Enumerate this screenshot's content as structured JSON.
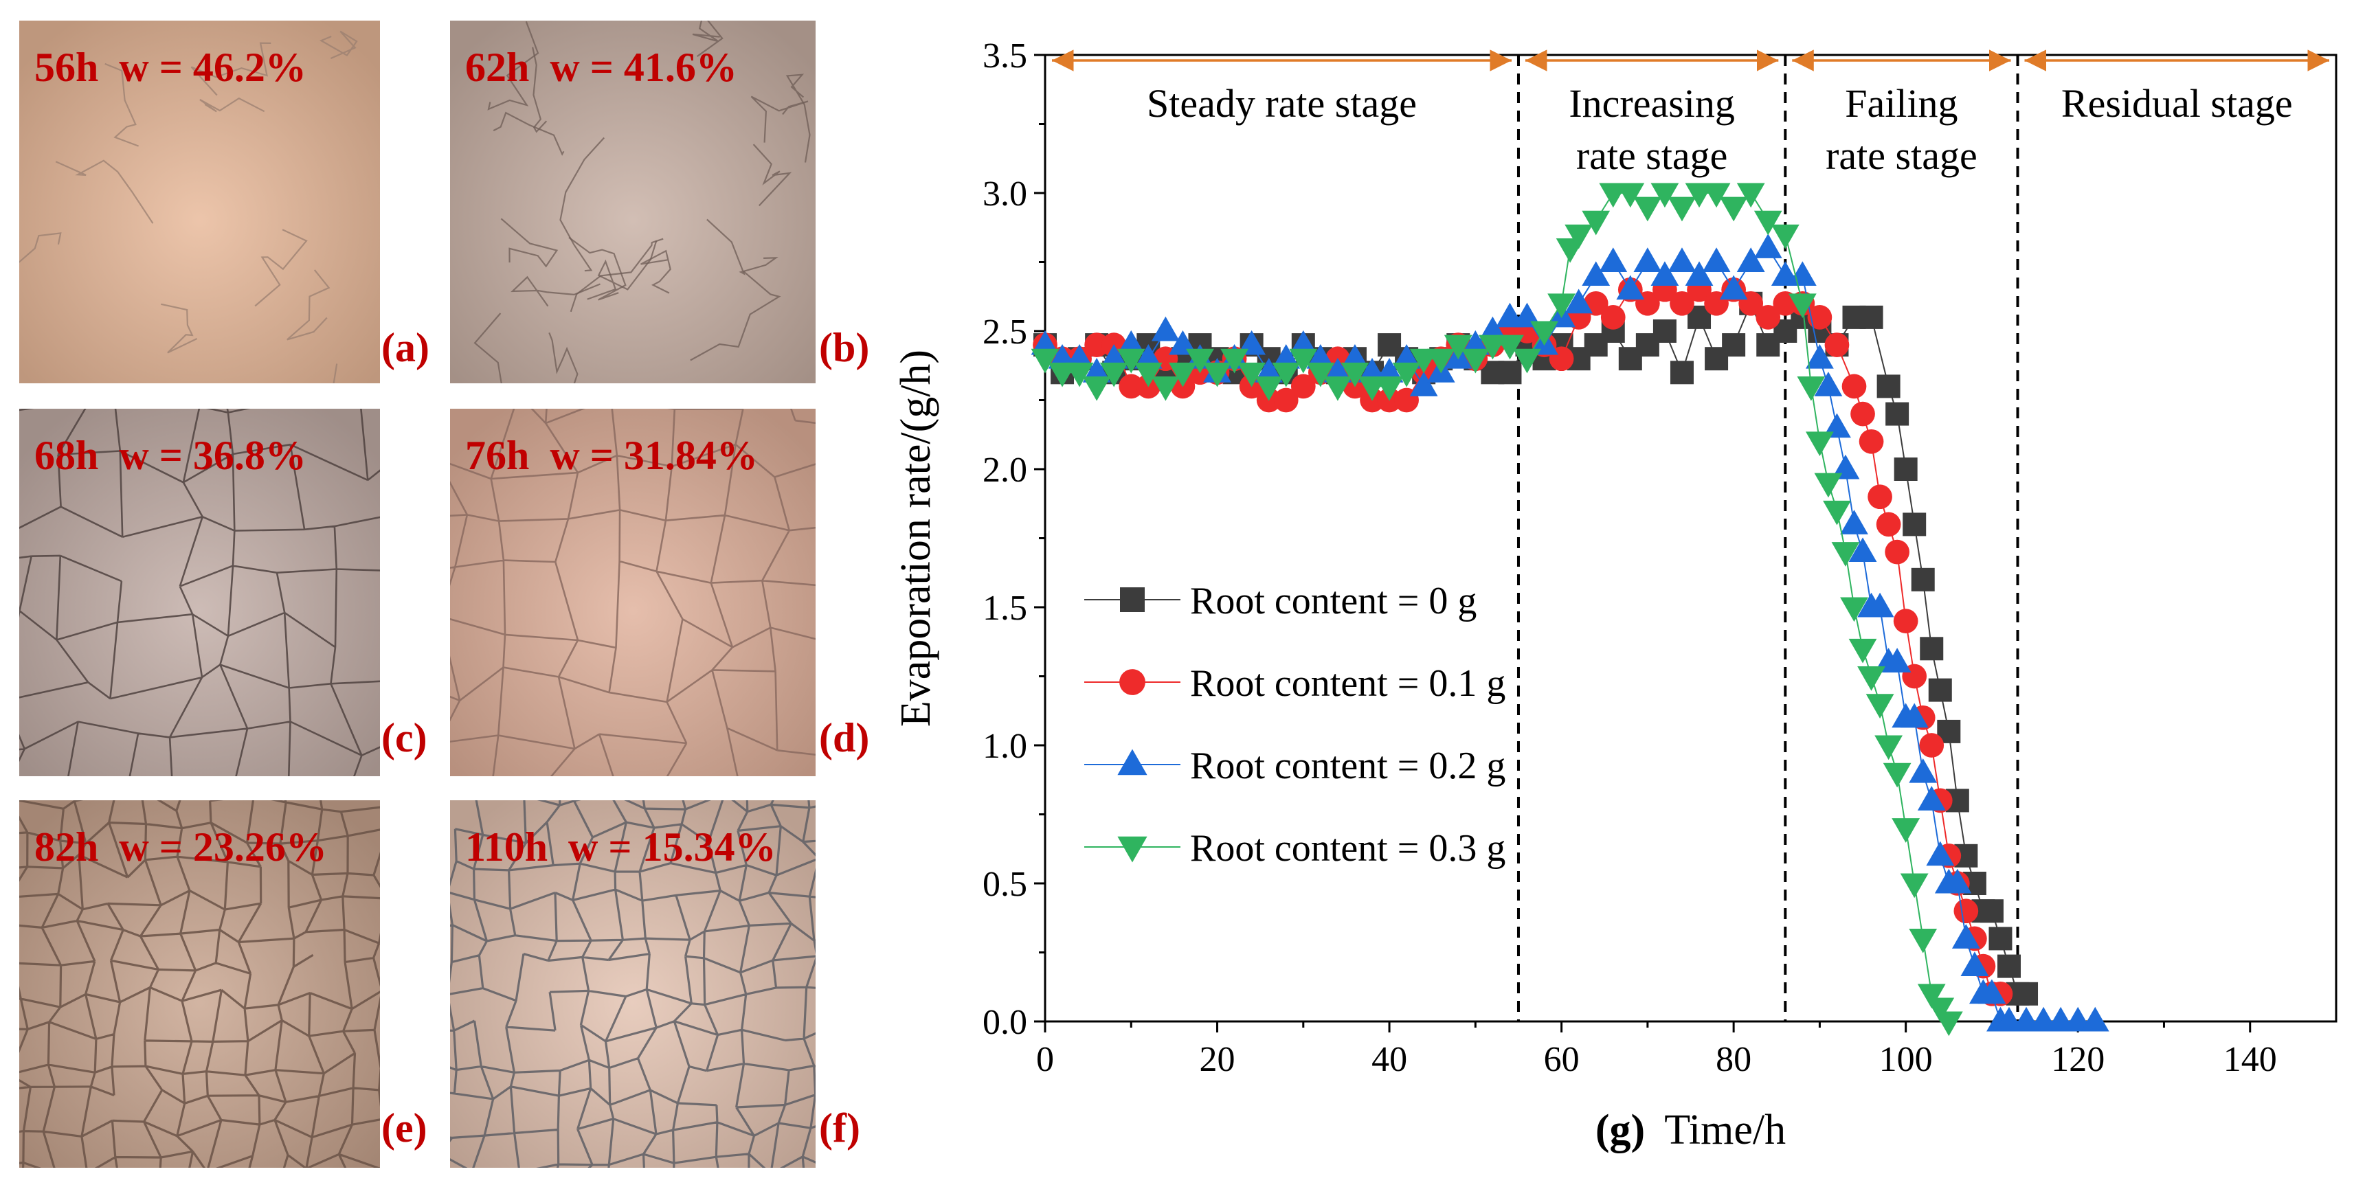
{
  "photos": [
    {
      "id": "a",
      "caption": "56h  w = 46.2%",
      "tag": "(a)",
      "base": "#e8b898",
      "crack": "#9a7f70",
      "crack_density": "sparse"
    },
    {
      "id": "b",
      "caption": "62h  w = 41.6%",
      "tag": "(b)",
      "base": "#c8b0a4",
      "crack": "#6d5c55",
      "crack_density": "light"
    },
    {
      "id": "c",
      "caption": "68h  w = 36.8%",
      "tag": "(c)",
      "base": "#c2ada6",
      "crack": "#4f4240",
      "crack_density": "medium"
    },
    {
      "id": "d",
      "caption": "76h  w = 31.84%",
      "tag": "(d)",
      "base": "#e0b09a",
      "crack": "#8b6b60",
      "crack_density": "medium"
    },
    {
      "id": "e",
      "caption": "82h  w = 23.26%",
      "tag": "(e)",
      "base": "#c8a48e",
      "crack": "#6a5246",
      "crack_density": "dense"
    },
    {
      "id": "f",
      "caption": "110h  w = 15.34%",
      "tag": "(f)",
      "base": "#e3c2b0",
      "crack": "#5e5e64",
      "crack_density": "dense"
    }
  ],
  "chart_data": {
    "type": "scatter",
    "title": "",
    "panel_label": "(g)",
    "xlabel": "Time/h",
    "ylabel": "Evaporation rate/(g/h)",
    "xlim": [
      0,
      150
    ],
    "ylim": [
      0,
      3.5
    ],
    "xticks": [
      0,
      20,
      40,
      60,
      80,
      100,
      120,
      140
    ],
    "yticks": [
      0.0,
      0.5,
      1.0,
      1.5,
      2.0,
      2.5,
      3.0,
      3.5
    ],
    "ytick_labels": [
      "0.0",
      "0.5",
      "1.0",
      "1.5",
      "2.0",
      "2.5",
      "3.0",
      "3.5"
    ],
    "stage_boundaries": [
      55,
      86,
      113
    ],
    "stages": [
      {
        "label_lines": [
          "Steady rate stage"
        ],
        "from": 0,
        "to": 55
      },
      {
        "label_lines": [
          "Increasing",
          "rate stage"
        ],
        "from": 55,
        "to": 86
      },
      {
        "label_lines": [
          "Failing",
          "rate stage"
        ],
        "from": 86,
        "to": 113
      },
      {
        "label_lines": [
          "Residual stage"
        ],
        "from": 113,
        "to": 150
      }
    ],
    "stage_arrow_color": "#e07b28",
    "legend_position": "center-left",
    "series": [
      {
        "name": "Root content = 0 g",
        "marker": "square",
        "color": "#3c3c3c",
        "points": [
          [
            0,
            2.45
          ],
          [
            2,
            2.35
          ],
          [
            4,
            2.4
          ],
          [
            6,
            2.45
          ],
          [
            8,
            2.35
          ],
          [
            10,
            2.4
          ],
          [
            12,
            2.45
          ],
          [
            14,
            2.35
          ],
          [
            16,
            2.4
          ],
          [
            18,
            2.45
          ],
          [
            20,
            2.4
          ],
          [
            22,
            2.35
          ],
          [
            24,
            2.45
          ],
          [
            26,
            2.4
          ],
          [
            28,
            2.35
          ],
          [
            30,
            2.45
          ],
          [
            32,
            2.4
          ],
          [
            34,
            2.35
          ],
          [
            36,
            2.4
          ],
          [
            38,
            2.35
          ],
          [
            40,
            2.45
          ],
          [
            42,
            2.4
          ],
          [
            44,
            2.35
          ],
          [
            46,
            2.4
          ],
          [
            48,
            2.45
          ],
          [
            50,
            2.4
          ],
          [
            52,
            2.35
          ],
          [
            54,
            2.35
          ],
          [
            56,
            2.45
          ],
          [
            58,
            2.4
          ],
          [
            60,
            2.45
          ],
          [
            62,
            2.4
          ],
          [
            64,
            2.45
          ],
          [
            66,
            2.5
          ],
          [
            68,
            2.4
          ],
          [
            70,
            2.45
          ],
          [
            72,
            2.5
          ],
          [
            74,
            2.35
          ],
          [
            76,
            2.55
          ],
          [
            78,
            2.4
          ],
          [
            80,
            2.45
          ],
          [
            82,
            2.6
          ],
          [
            84,
            2.45
          ],
          [
            86,
            2.5
          ],
          [
            88,
            2.55
          ],
          [
            90,
            2.5
          ],
          [
            92,
            2.45
          ],
          [
            94,
            2.55
          ],
          [
            96,
            2.55
          ],
          [
            98,
            2.3
          ],
          [
            99,
            2.2
          ],
          [
            100,
            2.0
          ],
          [
            101,
            1.8
          ],
          [
            102,
            1.6
          ],
          [
            103,
            1.35
          ],
          [
            104,
            1.2
          ],
          [
            105,
            1.05
          ],
          [
            106,
            0.8
          ],
          [
            107,
            0.6
          ],
          [
            108,
            0.5
          ],
          [
            109,
            0.4
          ],
          [
            110,
            0.4
          ],
          [
            111,
            0.3
          ],
          [
            112,
            0.2
          ],
          [
            113,
            0.1
          ],
          [
            114,
            0.1
          ]
        ]
      },
      {
        "name": "Root content = 0.1 g",
        "marker": "circle",
        "color": "#ee2b2b",
        "points": [
          [
            0,
            2.45
          ],
          [
            2,
            2.4
          ],
          [
            4,
            2.4
          ],
          [
            6,
            2.45
          ],
          [
            8,
            2.45
          ],
          [
            10,
            2.3
          ],
          [
            12,
            2.3
          ],
          [
            14,
            2.4
          ],
          [
            16,
            2.3
          ],
          [
            18,
            2.35
          ],
          [
            20,
            2.35
          ],
          [
            22,
            2.4
          ],
          [
            24,
            2.3
          ],
          [
            26,
            2.25
          ],
          [
            28,
            2.25
          ],
          [
            30,
            2.3
          ],
          [
            32,
            2.35
          ],
          [
            34,
            2.4
          ],
          [
            36,
            2.3
          ],
          [
            38,
            2.25
          ],
          [
            40,
            2.25
          ],
          [
            42,
            2.25
          ],
          [
            44,
            2.35
          ],
          [
            46,
            2.4
          ],
          [
            48,
            2.45
          ],
          [
            50,
            2.4
          ],
          [
            52,
            2.45
          ],
          [
            54,
            2.5
          ],
          [
            56,
            2.5
          ],
          [
            58,
            2.45
          ],
          [
            60,
            2.4
          ],
          [
            62,
            2.55
          ],
          [
            64,
            2.6
          ],
          [
            66,
            2.55
          ],
          [
            68,
            2.65
          ],
          [
            70,
            2.6
          ],
          [
            72,
            2.65
          ],
          [
            74,
            2.6
          ],
          [
            76,
            2.65
          ],
          [
            78,
            2.6
          ],
          [
            80,
            2.65
          ],
          [
            82,
            2.6
          ],
          [
            84,
            2.55
          ],
          [
            86,
            2.6
          ],
          [
            88,
            2.6
          ],
          [
            90,
            2.55
          ],
          [
            92,
            2.45
          ],
          [
            94,
            2.3
          ],
          [
            95,
            2.2
          ],
          [
            96,
            2.1
          ],
          [
            97,
            1.9
          ],
          [
            98,
            1.8
          ],
          [
            99,
            1.7
          ],
          [
            100,
            1.45
          ],
          [
            101,
            1.25
          ],
          [
            102,
            1.1
          ],
          [
            103,
            1.0
          ],
          [
            104,
            0.8
          ],
          [
            105,
            0.6
          ],
          [
            106,
            0.5
          ],
          [
            107,
            0.4
          ],
          [
            108,
            0.3
          ],
          [
            109,
            0.2
          ],
          [
            110,
            0.1
          ],
          [
            111,
            0.1
          ]
        ]
      },
      {
        "name": "Root content = 0.2 g",
        "marker": "triangle-up",
        "color": "#1d6bd9",
        "points": [
          [
            0,
            2.45
          ],
          [
            2,
            2.4
          ],
          [
            4,
            2.4
          ],
          [
            6,
            2.35
          ],
          [
            8,
            2.4
          ],
          [
            10,
            2.45
          ],
          [
            12,
            2.4
          ],
          [
            14,
            2.5
          ],
          [
            16,
            2.45
          ],
          [
            18,
            2.4
          ],
          [
            20,
            2.35
          ],
          [
            22,
            2.4
          ],
          [
            24,
            2.45
          ],
          [
            26,
            2.35
          ],
          [
            28,
            2.4
          ],
          [
            30,
            2.45
          ],
          [
            32,
            2.4
          ],
          [
            34,
            2.35
          ],
          [
            36,
            2.4
          ],
          [
            38,
            2.35
          ],
          [
            40,
            2.35
          ],
          [
            42,
            2.4
          ],
          [
            44,
            2.3
          ],
          [
            46,
            2.35
          ],
          [
            48,
            2.4
          ],
          [
            50,
            2.45
          ],
          [
            52,
            2.5
          ],
          [
            54,
            2.55
          ],
          [
            56,
            2.55
          ],
          [
            58,
            2.45
          ],
          [
            60,
            2.55
          ],
          [
            62,
            2.6
          ],
          [
            64,
            2.7
          ],
          [
            66,
            2.75
          ],
          [
            68,
            2.65
          ],
          [
            70,
            2.75
          ],
          [
            72,
            2.7
          ],
          [
            74,
            2.75
          ],
          [
            76,
            2.7
          ],
          [
            78,
            2.75
          ],
          [
            80,
            2.65
          ],
          [
            82,
            2.75
          ],
          [
            84,
            2.8
          ],
          [
            86,
            2.7
          ],
          [
            88,
            2.7
          ],
          [
            90,
            2.4
          ],
          [
            91,
            2.3
          ],
          [
            92,
            2.15
          ],
          [
            93,
            2.0
          ],
          [
            94,
            1.8
          ],
          [
            95,
            1.7
          ],
          [
            96,
            1.5
          ],
          [
            97,
            1.5
          ],
          [
            98,
            1.3
          ],
          [
            99,
            1.3
          ],
          [
            100,
            1.1
          ],
          [
            101,
            1.1
          ],
          [
            102,
            0.9
          ],
          [
            103,
            0.8
          ],
          [
            104,
            0.6
          ],
          [
            105,
            0.5
          ],
          [
            106,
            0.5
          ],
          [
            107,
            0.3
          ],
          [
            108,
            0.2
          ],
          [
            109,
            0.1
          ],
          [
            110,
            0.1
          ],
          [
            111,
            0.0
          ],
          [
            112,
            0.0
          ],
          [
            114,
            0.0
          ],
          [
            116,
            0.0
          ],
          [
            118,
            0.0
          ],
          [
            120,
            0.0
          ],
          [
            122,
            0.0
          ]
        ]
      },
      {
        "name": "Root content = 0.3 g",
        "marker": "triangle-down",
        "color": "#2fb45f",
        "points": [
          [
            0,
            2.4
          ],
          [
            2,
            2.35
          ],
          [
            4,
            2.35
          ],
          [
            6,
            2.3
          ],
          [
            8,
            2.35
          ],
          [
            10,
            2.4
          ],
          [
            12,
            2.35
          ],
          [
            14,
            2.3
          ],
          [
            16,
            2.35
          ],
          [
            18,
            2.4
          ],
          [
            20,
            2.35
          ],
          [
            22,
            2.4
          ],
          [
            24,
            2.35
          ],
          [
            26,
            2.3
          ],
          [
            28,
            2.35
          ],
          [
            30,
            2.4
          ],
          [
            32,
            2.35
          ],
          [
            34,
            2.3
          ],
          [
            36,
            2.35
          ],
          [
            38,
            2.3
          ],
          [
            40,
            2.3
          ],
          [
            42,
            2.35
          ],
          [
            44,
            2.4
          ],
          [
            46,
            2.4
          ],
          [
            48,
            2.45
          ],
          [
            50,
            2.4
          ],
          [
            52,
            2.45
          ],
          [
            54,
            2.45
          ],
          [
            56,
            2.4
          ],
          [
            58,
            2.5
          ],
          [
            60,
            2.6
          ],
          [
            61,
            2.8
          ],
          [
            62,
            2.85
          ],
          [
            64,
            2.9
          ],
          [
            66,
            3.0
          ],
          [
            68,
            3.0
          ],
          [
            70,
            2.95
          ],
          [
            72,
            3.0
          ],
          [
            74,
            2.95
          ],
          [
            76,
            3.0
          ],
          [
            78,
            3.0
          ],
          [
            80,
            2.95
          ],
          [
            82,
            3.0
          ],
          [
            84,
            2.9
          ],
          [
            86,
            2.85
          ],
          [
            88,
            2.6
          ],
          [
            89,
            2.3
          ],
          [
            90,
            2.1
          ],
          [
            91,
            1.95
          ],
          [
            92,
            1.85
          ],
          [
            93,
            1.7
          ],
          [
            94,
            1.5
          ],
          [
            95,
            1.35
          ],
          [
            96,
            1.25
          ],
          [
            97,
            1.15
          ],
          [
            98,
            1.0
          ],
          [
            99,
            0.9
          ],
          [
            100,
            0.7
          ],
          [
            101,
            0.5
          ],
          [
            102,
            0.3
          ],
          [
            103,
            0.1
          ],
          [
            104,
            0.05
          ],
          [
            105,
            0.0
          ]
        ]
      }
    ]
  }
}
